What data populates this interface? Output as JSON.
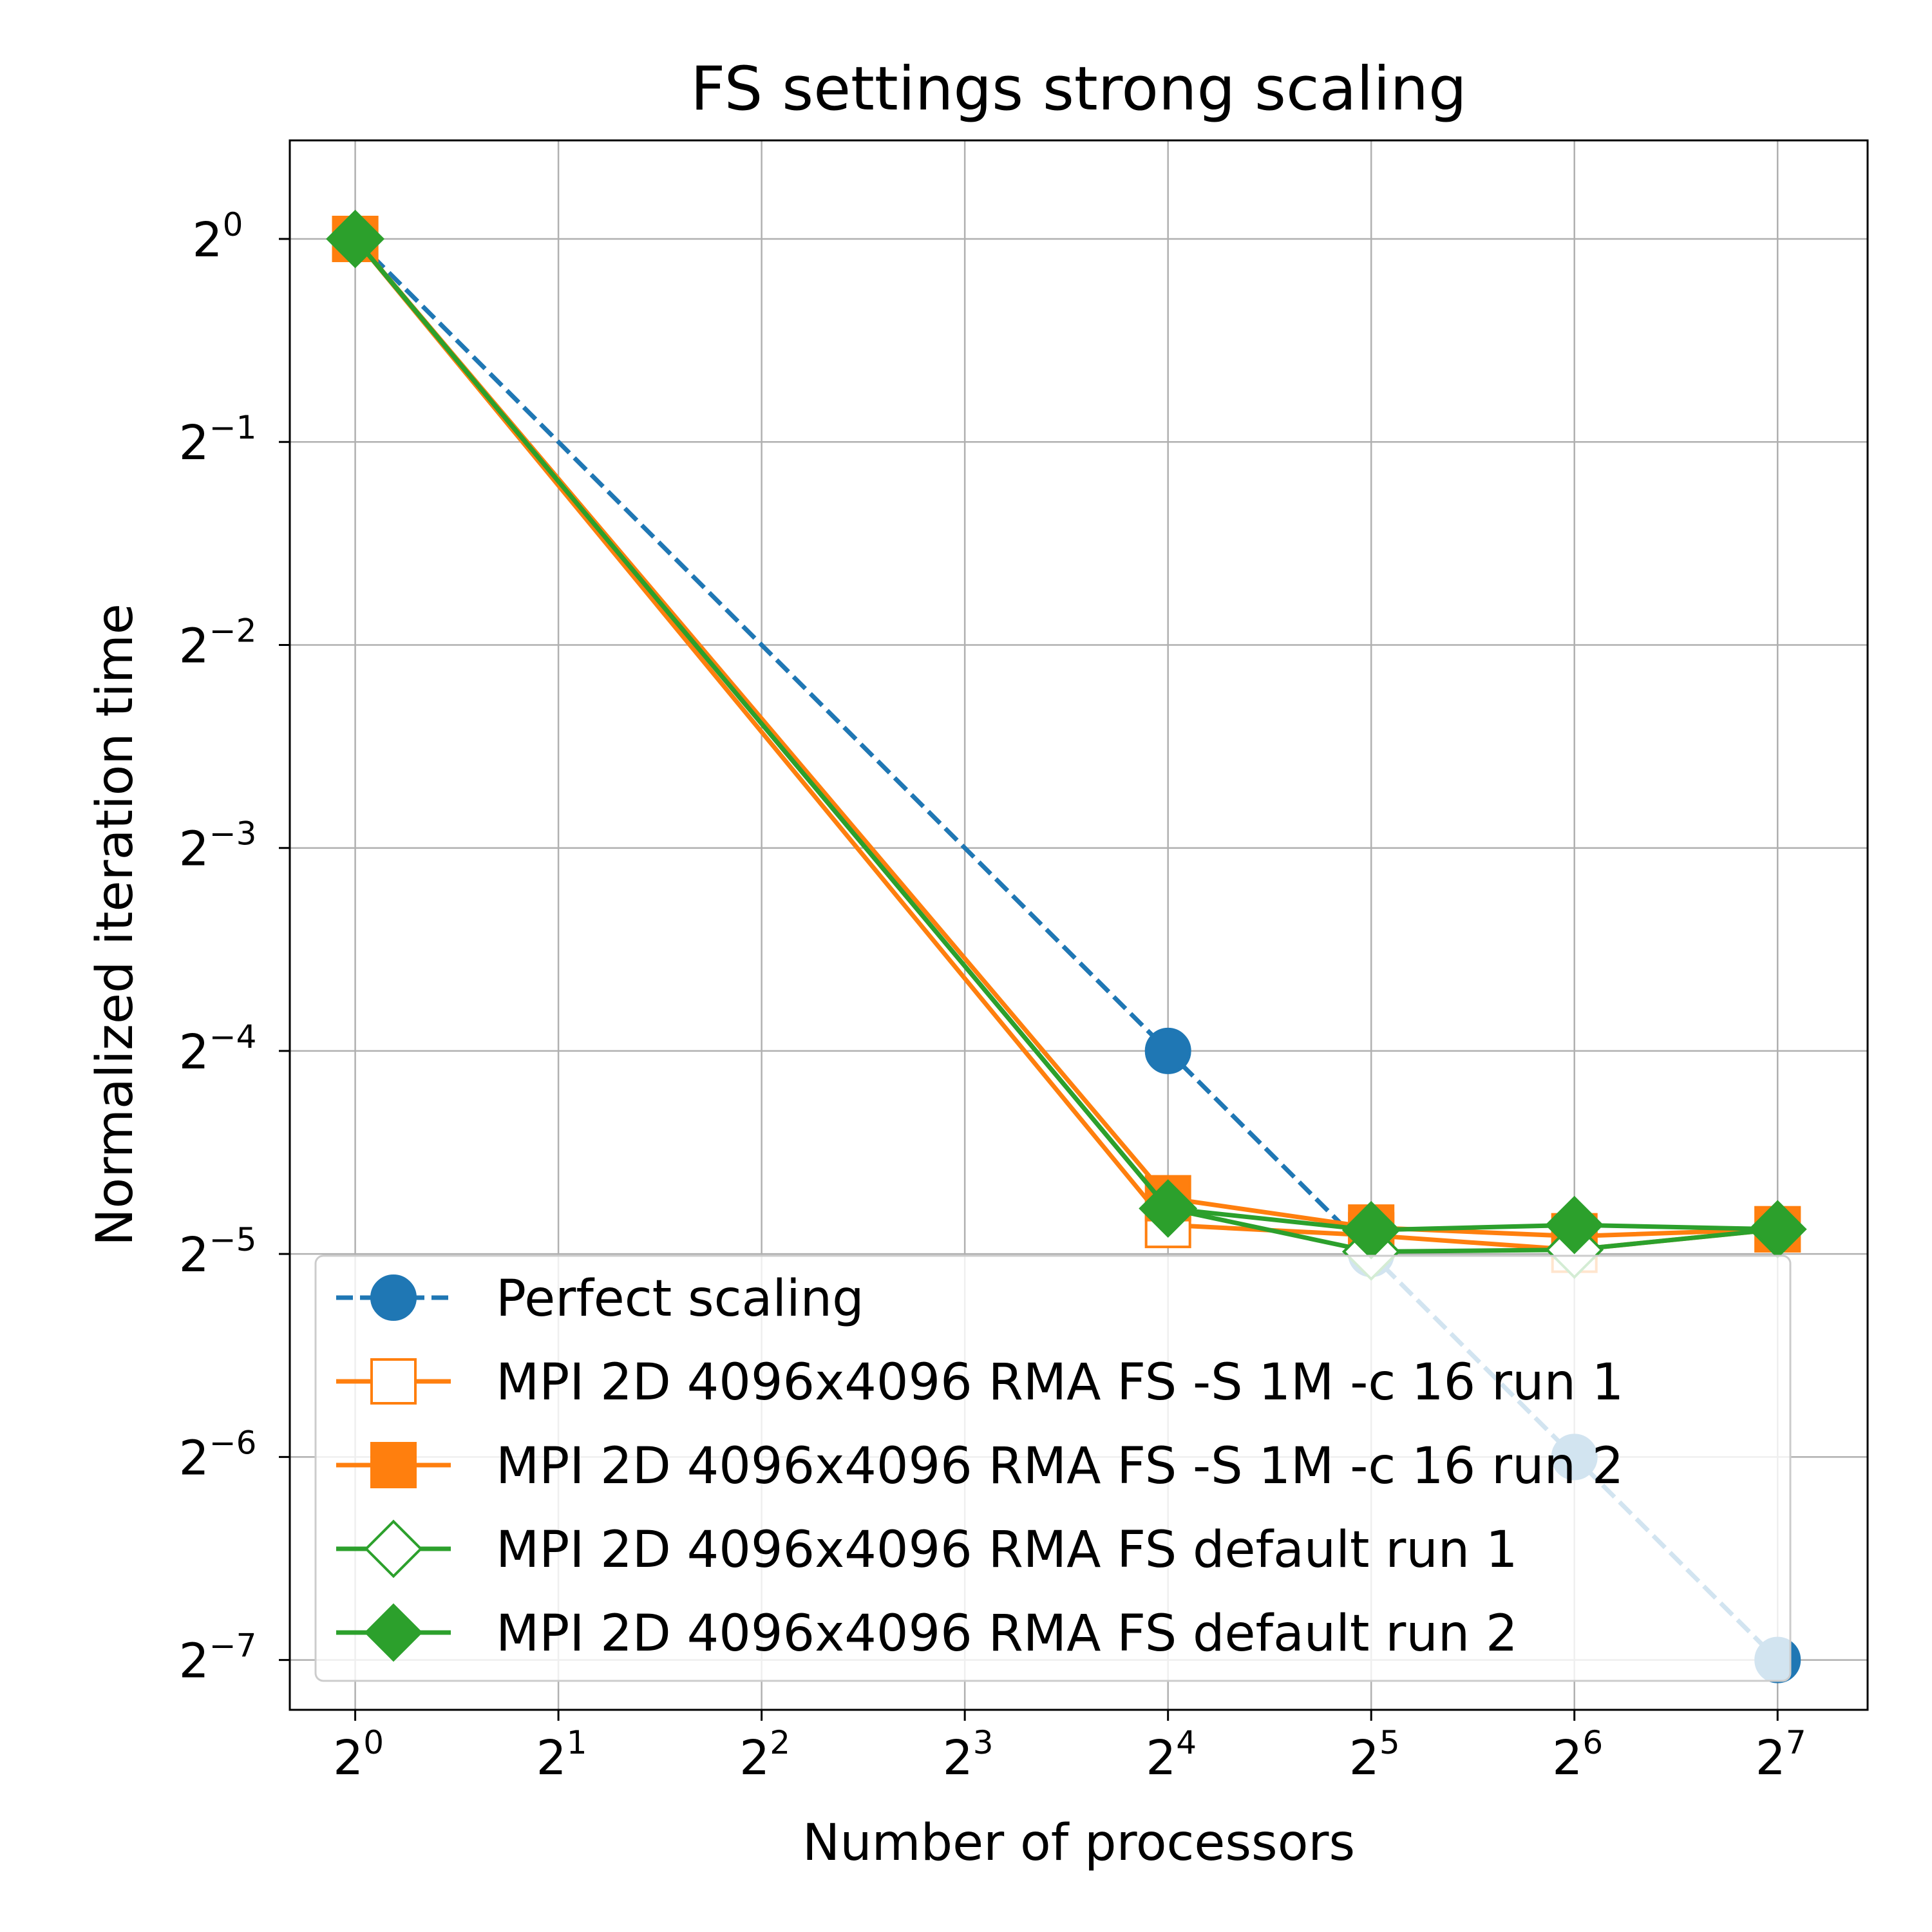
{
  "chart_data": {
    "type": "line",
    "title": "FS settings strong scaling",
    "xlabel": "Number of processors",
    "ylabel": "Normalized iteration time",
    "x_scale": "log2",
    "y_scale": "log2",
    "xlim": [
      0.8,
      174
    ],
    "ylim": [
      0.00659,
      1.4
    ],
    "grid": true,
    "legend_position": "lower-right",
    "x_ticks": [
      {
        "base": "2",
        "exp": "0",
        "value": 1
      },
      {
        "base": "2",
        "exp": "1",
        "value": 2
      },
      {
        "base": "2",
        "exp": "2",
        "value": 4
      },
      {
        "base": "2",
        "exp": "3",
        "value": 8
      },
      {
        "base": "2",
        "exp": "4",
        "value": 16
      },
      {
        "base": "2",
        "exp": "5",
        "value": 32
      },
      {
        "base": "2",
        "exp": "6",
        "value": 64
      },
      {
        "base": "2",
        "exp": "7",
        "value": 128
      }
    ],
    "y_ticks": [
      {
        "base": "2",
        "exp": "0",
        "value": 1
      },
      {
        "base": "2",
        "exp": "−1",
        "value": 0.5
      },
      {
        "base": "2",
        "exp": "−2",
        "value": 0.25
      },
      {
        "base": "2",
        "exp": "−3",
        "value": 0.125
      },
      {
        "base": "2",
        "exp": "−4",
        "value": 0.0625
      },
      {
        "base": "2",
        "exp": "−5",
        "value": 0.03125
      },
      {
        "base": "2",
        "exp": "−6",
        "value": 0.015625
      },
      {
        "base": "2",
        "exp": "−7",
        "value": 0.0078125
      }
    ],
    "series": [
      {
        "name": "Perfect scaling",
        "color": "#1f77b4",
        "line": "dashed",
        "marker": "circle",
        "filled": true,
        "x": [
          1,
          16,
          32,
          64,
          128
        ],
        "y": [
          1,
          0.0625,
          0.03125,
          0.015625,
          0.0078125
        ]
      },
      {
        "name": "MPI 2D 4096x4096 RMA FS -S 1M -c 16 run 1",
        "color": "#ff7f0e",
        "line": "solid",
        "marker": "square",
        "filled": false,
        "x": [
          1,
          16,
          32,
          64,
          128
        ],
        "y": [
          1,
          0.0345,
          0.0333,
          0.0317,
          0.034
        ]
      },
      {
        "name": "MPI 2D 4096x4096 RMA FS -S 1M -c 16 run 2",
        "color": "#ff7f0e",
        "line": "solid",
        "marker": "square",
        "filled": true,
        "x": [
          1,
          16,
          32,
          64,
          128
        ],
        "y": [
          1,
          0.0378,
          0.0342,
          0.0332,
          0.034
        ]
      },
      {
        "name": "MPI 2D 4096x4096 RMA FS default run 1",
        "color": "#2ca02c",
        "line": "solid",
        "marker": "diamond",
        "filled": false,
        "x": [
          1,
          16,
          32,
          64,
          128
        ],
        "y": [
          1,
          0.0365,
          0.0315,
          0.0317,
          0.034
        ]
      },
      {
        "name": "MPI 2D 4096x4096 RMA FS default run 2",
        "color": "#2ca02c",
        "line": "solid",
        "marker": "diamond",
        "filled": true,
        "x": [
          1,
          16,
          32,
          64,
          128
        ],
        "y": [
          1,
          0.0365,
          0.0339,
          0.0345,
          0.034
        ]
      }
    ]
  }
}
